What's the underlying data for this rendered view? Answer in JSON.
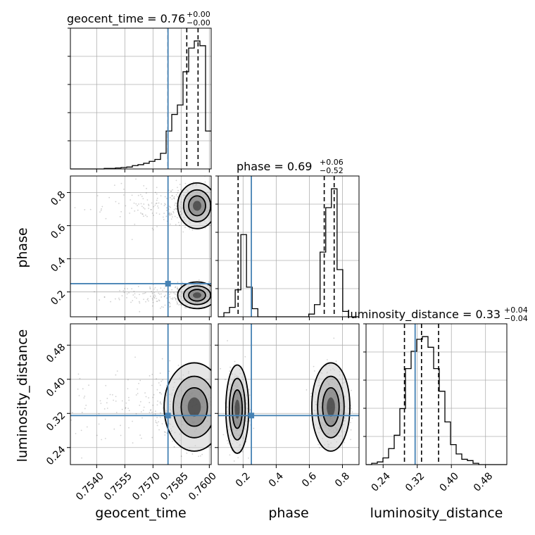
{
  "chart_data": {
    "type": "corner",
    "parameters": [
      "geocent_time",
      "phase",
      "luminosity_distance"
    ],
    "truth": {
      "geocent_time": 0.7578,
      "phase": 0.25,
      "luminosity_distance": 0.315
    },
    "diagonal": [
      {
        "param": "geocent_time",
        "title": "geocent_time = 0.76",
        "title_plus": "+0.00",
        "title_minus": "−0.00",
        "range": [
          0.7526,
          0.7601
        ],
        "quantiles": [
          0.7578,
          0.7588,
          0.7594
        ],
        "bins": [
          0.7526,
          0.7529,
          0.7532,
          0.7535,
          0.7538,
          0.7541,
          0.7544,
          0.7547,
          0.755,
          0.7553,
          0.7556,
          0.7559,
          0.7562,
          0.7565,
          0.7568,
          0.7571,
          0.7574,
          0.7577,
          0.758,
          0.7583,
          0.7586,
          0.7589,
          0.7592,
          0.7595,
          0.7598,
          0.7601
        ],
        "counts": [
          0,
          0,
          0,
          0,
          0,
          0,
          1,
          1,
          2,
          3,
          4,
          7,
          9,
          12,
          16,
          20,
          33,
          80,
          115,
          135,
          205,
          255,
          270,
          260,
          80
        ]
      },
      {
        "param": "phase",
        "title": "phase = 0.69",
        "title_plus": "+0.06",
        "title_minus": "−0.52",
        "range": [
          0.05,
          0.9
        ],
        "quantiles": [
          0.17,
          0.69,
          0.75
        ],
        "bins": [
          0.05,
          0.0842,
          0.1183,
          0.1525,
          0.1867,
          0.2208,
          0.255,
          0.2892,
          0.3233,
          0.3575,
          0.3917,
          0.4258,
          0.46,
          0.4942,
          0.5283,
          0.5625,
          0.5967,
          0.6308,
          0.665,
          0.6992,
          0.7333,
          0.7675,
          0.8017,
          0.8358,
          0.87,
          0.9
        ],
        "counts": [
          0,
          6,
          14,
          40,
          122,
          44,
          12,
          0,
          0,
          0,
          0,
          0,
          0,
          0,
          0,
          0,
          4,
          18,
          96,
          162,
          190,
          70,
          8,
          0,
          0
        ]
      },
      {
        "param": "luminosity_distance",
        "title": "luminosity_distance = 0.33",
        "title_plus": "+0.04",
        "title_minus": "−0.04",
        "range": [
          0.2,
          0.53
        ],
        "quantiles": [
          0.29,
          0.33,
          0.37
        ],
        "bins": [
          0.2,
          0.2132,
          0.2264,
          0.2396,
          0.2528,
          0.266,
          0.2792,
          0.2924,
          0.3056,
          0.3188,
          0.332,
          0.3452,
          0.3584,
          0.3716,
          0.3848,
          0.398,
          0.4112,
          0.4244,
          0.4376,
          0.4508,
          0.464,
          0.4772,
          0.4904,
          0.5036,
          0.5168,
          0.53
        ],
        "counts": [
          0,
          1,
          2,
          5,
          12,
          22,
          42,
          72,
          85,
          94,
          96,
          88,
          72,
          55,
          32,
          15,
          8,
          4,
          3,
          1,
          0,
          0,
          0,
          0,
          0
        ]
      }
    ],
    "axes": {
      "geocent_time": {
        "label": "geocent_time",
        "range": [
          0.7526,
          0.7601
        ],
        "ticks": [
          0.754,
          0.7555,
          0.757,
          0.7585,
          0.76
        ],
        "tick_labels": [
          "0.7540",
          "0.7555",
          "0.7570",
          "0.7585",
          "0.7600"
        ]
      },
      "phase": {
        "label": "phase",
        "range": [
          0.05,
          0.9
        ],
        "ticks": [
          0.2,
          0.4,
          0.6,
          0.8
        ],
        "tick_labels": [
          "0.2",
          "0.4",
          "0.6",
          "0.8"
        ]
      },
      "luminosity_distance": {
        "label": "luminosity_distance",
        "range": [
          0.2,
          0.53
        ],
        "ticks": [
          0.24,
          0.32,
          0.4,
          0.48
        ],
        "tick_labels": [
          "0.24",
          "0.32",
          "0.40",
          "0.48"
        ]
      }
    },
    "pair_clusters": {
      "geocent_time__phase": [
        {
          "x": 0.75935,
          "y": 0.72,
          "sx": 0.00045,
          "sy": 0.06
        },
        {
          "x": 0.75935,
          "y": 0.18,
          "sx": 0.00045,
          "sy": 0.035
        }
      ],
      "geocent_time__luminosity_distance": [
        {
          "x": 0.7592,
          "y": 0.335,
          "sx": 0.0007,
          "sy": 0.045
        }
      ],
      "phase__luminosity_distance": [
        {
          "x": 0.165,
          "y": 0.33,
          "sx": 0.03,
          "sy": 0.045
        },
        {
          "x": 0.73,
          "y": 0.335,
          "sx": 0.05,
          "sy": 0.045
        }
      ]
    },
    "grid": true,
    "colors": {
      "truth": "#4682b4",
      "hist": "#000000",
      "grid": "#b0b0b0",
      "points": "#000000"
    }
  }
}
